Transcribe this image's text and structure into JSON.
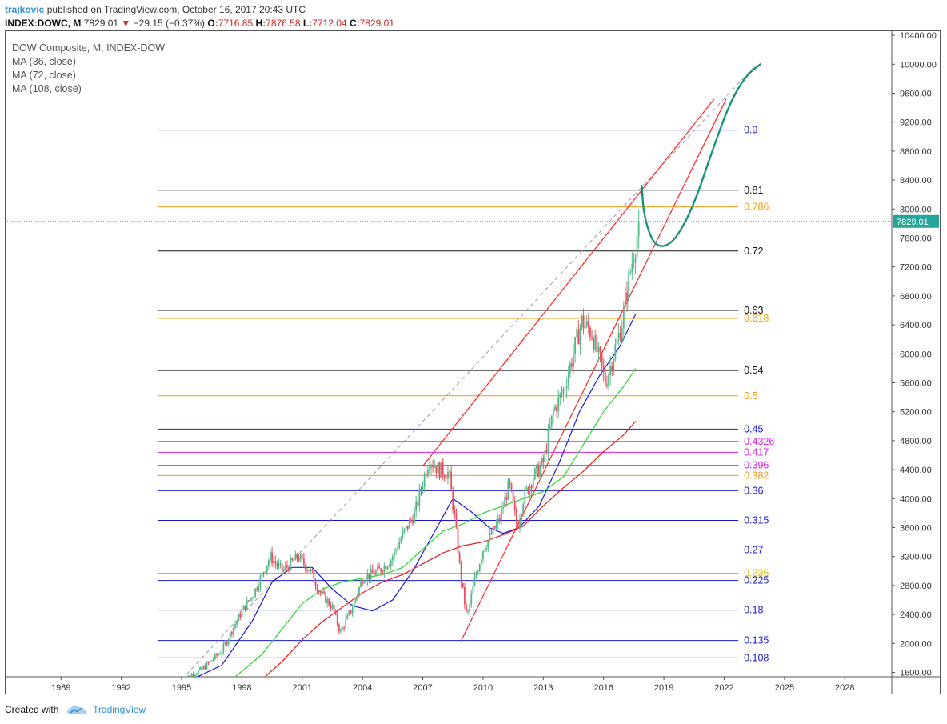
{
  "header": {
    "author": "trajkovic",
    "published_text": "published on TradingView.com, October 16, 2017 20:43 UTC",
    "symbol": "INDEX:DOWC, M",
    "last": "7829.01",
    "down_arrow": "▼",
    "change": "−29.15 (−0.37%)",
    "o_label": "O:",
    "o_value": "7716.85",
    "h_label": "H:",
    "h_value": "7876.58",
    "l_label": "L:",
    "l_value": "7712.04",
    "c_label": "C:",
    "c_value": "7829.01"
  },
  "legend": {
    "title": "DOW Composite, M, INDEX-DOW",
    "ma1": "MA (36, close)",
    "ma2": "MA (72, close)",
    "ma3": "MA (108, close)"
  },
  "footer": {
    "created_with": "Created with",
    "brand": "TradingView",
    "logo_icon": "tradingview-cloud-icon"
  },
  "colors": {
    "up": "#53b987",
    "down": "#eb4d5c",
    "ma36": "#1a1ad6",
    "ma72": "#2bd62b",
    "ma108": "#e31919",
    "trend": "#ff2222",
    "forecast": "#14907a",
    "price_line": "#26a69a"
  },
  "chart_data": {
    "type": "candlestick",
    "timeframe": "monthly",
    "price_axis_labels": [
      "10400.00",
      "10000.00",
      "9600.00",
      "9200.00",
      "8800.00",
      "8400.00",
      "8000.00",
      "7600.00",
      "7200.00",
      "6800.00",
      "6400.00",
      "6000.00",
      "5600.00",
      "5200.00",
      "4800.00",
      "4400.00",
      "4000.00",
      "3600.00",
      "3200.00",
      "2800.00",
      "2400.00",
      "2000.00",
      "1600.00"
    ],
    "year_axis_labels": [
      "1989",
      "1992",
      "1995",
      "1998",
      "2001",
      "2004",
      "2007",
      "2010",
      "2013",
      "2016",
      "2019",
      "2022",
      "2025",
      "2028"
    ],
    "last_price_label": "7829.01",
    "last_price": 7829.01,
    "fib_levels": [
      {
        "label": "0.9",
        "price": 9090,
        "color": "#1a1ad6"
      },
      {
        "label": "0.81",
        "price": 8260,
        "color": "#111111"
      },
      {
        "label": "0.786",
        "price": 8030,
        "color": "#f39c12"
      },
      {
        "label": "0.72",
        "price": 7420,
        "color": "#111111"
      },
      {
        "label": "0.63",
        "price": 6600,
        "color": "#111111"
      },
      {
        "label": "0.618",
        "price": 6490,
        "color": "#f39c12"
      },
      {
        "label": "0.54",
        "price": 5770,
        "color": "#111111"
      },
      {
        "label": "0.5",
        "price": 5420,
        "color": "#f39c12"
      },
      {
        "label": "0.45",
        "price": 4960,
        "color": "#1a1ad6"
      },
      {
        "label": "0.4326",
        "price": 4790,
        "color": "#e020e0"
      },
      {
        "label": "0.417",
        "price": 4640,
        "color": "#e020e0"
      },
      {
        "label": "0.396",
        "price": 4460,
        "color": "#e020e0"
      },
      {
        "label": "0.382",
        "price": 4320,
        "color": "#f39c12"
      },
      {
        "label": "0.36",
        "price": 4110,
        "color": "#1a1ad6"
      },
      {
        "label": "0.315",
        "price": 3700,
        "color": "#1a1ad6"
      },
      {
        "label": "0.27",
        "price": 3290,
        "color": "#1a1ad6"
      },
      {
        "label": "0.236",
        "price": 2970,
        "color": "#d4b800"
      },
      {
        "label": "0.225",
        "price": 2870,
        "color": "#1a1ad6"
      },
      {
        "label": "0.18",
        "price": 2460,
        "color": "#1a1ad6"
      },
      {
        "label": "0.135",
        "price": 2040,
        "color": "#1a1ad6"
      },
      {
        "label": "0.108",
        "price": 1800,
        "color": "#1a1ad6"
      }
    ],
    "fib_line_start_year": 1993.8,
    "fib_line_end_year": 2022.7,
    "price_anchors": [
      [
        1995.0,
        1500
      ],
      [
        1996.0,
        1640
      ],
      [
        1997.0,
        1900
      ],
      [
        1998.0,
        2450
      ],
      [
        1998.6,
        2700
      ],
      [
        1999.4,
        3200
      ],
      [
        2000.0,
        3000
      ],
      [
        2000.8,
        3200
      ],
      [
        2001.4,
        3000
      ],
      [
        2001.9,
        2700
      ],
      [
        2002.5,
        2500
      ],
      [
        2002.9,
        2150
      ],
      [
        2003.5,
        2500
      ],
      [
        2004.0,
        2900
      ],
      [
        2004.8,
        3000
      ],
      [
        2005.4,
        3150
      ],
      [
        2006.0,
        3500
      ],
      [
        2006.6,
        3800
      ],
      [
        2007.3,
        4550
      ],
      [
        2007.8,
        4400
      ],
      [
        2008.3,
        4350
      ],
      [
        2008.6,
        3700
      ],
      [
        2008.9,
        2900
      ],
      [
        2009.2,
        2350
      ],
      [
        2009.6,
        2900
      ],
      [
        2010.0,
        3300
      ],
      [
        2010.4,
        3500
      ],
      [
        2010.8,
        3700
      ],
      [
        2011.3,
        4200
      ],
      [
        2011.7,
        3600
      ],
      [
        2012.0,
        4000
      ],
      [
        2012.5,
        4300
      ],
      [
        2013.0,
        4500
      ],
      [
        2013.5,
        5200
      ],
      [
        2014.0,
        5500
      ],
      [
        2014.4,
        5900
      ],
      [
        2014.9,
        6450
      ],
      [
        2015.4,
        6300
      ],
      [
        2015.8,
        5900
      ],
      [
        2016.1,
        5600
      ],
      [
        2016.5,
        6000
      ],
      [
        2016.9,
        6400
      ],
      [
        2017.3,
        7100
      ],
      [
        2017.8,
        7829
      ]
    ],
    "moving_averages": [
      {
        "name": "MA (36, close)",
        "color": "#1a1ad6",
        "points": [
          [
            1995.5,
            1500
          ],
          [
            1997,
            1700
          ],
          [
            1998.5,
            2300
          ],
          [
            1999.5,
            2850
          ],
          [
            2000.5,
            3050
          ],
          [
            2001.5,
            3050
          ],
          [
            2002.5,
            2750
          ],
          [
            2003.5,
            2520
          ],
          [
            2004.5,
            2450
          ],
          [
            2005.5,
            2600
          ],
          [
            2006.5,
            3000
          ],
          [
            2007.5,
            3500
          ],
          [
            2008.5,
            4000
          ],
          [
            2009.5,
            3800
          ],
          [
            2010.3,
            3600
          ],
          [
            2011,
            3520
          ],
          [
            2011.8,
            3600
          ],
          [
            2012.8,
            3900
          ],
          [
            2013.8,
            4500
          ],
          [
            2014.8,
            5200
          ],
          [
            2015.8,
            5700
          ],
          [
            2016.8,
            6100
          ],
          [
            2017.6,
            6550
          ]
        ]
      },
      {
        "name": "MA (72, close)",
        "color": "#2bd62b",
        "points": [
          [
            1997.5,
            1500
          ],
          [
            1999,
            1850
          ],
          [
            2000,
            2200
          ],
          [
            2001,
            2550
          ],
          [
            2002,
            2750
          ],
          [
            2003,
            2850
          ],
          [
            2004,
            2900
          ],
          [
            2005,
            2950
          ],
          [
            2006,
            3050
          ],
          [
            2007,
            3300
          ],
          [
            2008,
            3550
          ],
          [
            2009,
            3650
          ],
          [
            2010,
            3800
          ],
          [
            2011,
            3900
          ],
          [
            2012,
            4000
          ],
          [
            2013,
            4100
          ],
          [
            2014,
            4300
          ],
          [
            2015,
            4750
          ],
          [
            2016,
            5200
          ],
          [
            2017,
            5550
          ],
          [
            2017.6,
            5800
          ]
        ]
      },
      {
        "name": "MA (108, close)",
        "color": "#e31919",
        "points": [
          [
            1999,
            1500
          ],
          [
            2000,
            1750
          ],
          [
            2001,
            2050
          ],
          [
            2002,
            2300
          ],
          [
            2003,
            2500
          ],
          [
            2004,
            2700
          ],
          [
            2005,
            2850
          ],
          [
            2006,
            2950
          ],
          [
            2007,
            3100
          ],
          [
            2008,
            3250
          ],
          [
            2009,
            3350
          ],
          [
            2010,
            3400
          ],
          [
            2011,
            3500
          ],
          [
            2012,
            3620
          ],
          [
            2013,
            3900
          ],
          [
            2014,
            4150
          ],
          [
            2015,
            4380
          ],
          [
            2016,
            4650
          ],
          [
            2017,
            4880
          ],
          [
            2017.6,
            5070
          ]
        ]
      }
    ],
    "dashed_trend": [
      [
        1995.0,
        1500
      ],
      [
        2023.6,
        10000
      ]
    ],
    "trend_lines": [
      [
        [
          2007.0,
          4450
        ],
        [
          2021.5,
          9520
        ]
      ],
      [
        [
          2008.9,
          2030
        ],
        [
          2022.1,
          9520
        ]
      ]
    ],
    "forecast_path": [
      [
        2017.9,
        8320
      ],
      [
        2018.0,
        7920
      ],
      [
        2018.4,
        7560
      ],
      [
        2018.9,
        7460
      ],
      [
        2019.6,
        7580
      ],
      [
        2020.5,
        8060
      ],
      [
        2021.4,
        8800
      ],
      [
        2022.3,
        9480
      ],
      [
        2023.1,
        9850
      ],
      [
        2023.8,
        10000
      ]
    ]
  }
}
